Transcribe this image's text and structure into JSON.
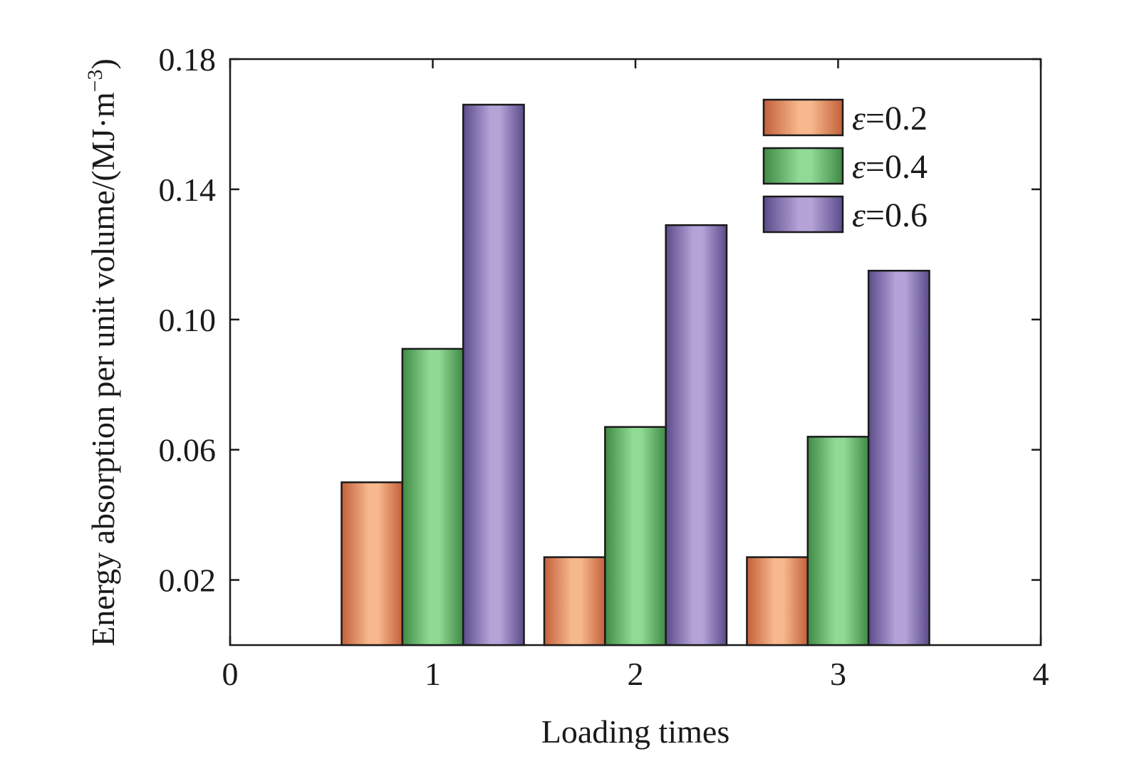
{
  "chart_data": {
    "type": "bar",
    "title": "",
    "xlabel": "Loading times",
    "ylabel_main": "Energy absorption per unit volume/(MJ·m",
    "ylabel_sup": "−3",
    "ylabel_close": ")",
    "x_ticks": [
      "0",
      "1",
      "2",
      "3",
      "4"
    ],
    "y_ticks": [
      "0.02",
      "0.06",
      "0.10",
      "0.14",
      "0.18"
    ],
    "y_tick_values": [
      0.02,
      0.06,
      0.1,
      0.14,
      0.18
    ],
    "xlim": [
      0,
      4
    ],
    "ylim": [
      0,
      0.18
    ],
    "grid": false,
    "legend_position": "top-right",
    "categories": [
      1,
      2,
      3
    ],
    "series": [
      {
        "symbol": "ε",
        "label_rest": "=0.2",
        "values": [
          0.05,
          0.027,
          0.027
        ],
        "colors": {
          "edge": "#c2603a",
          "center": "#f8b88d"
        }
      },
      {
        "symbol": "ε",
        "label_rest": "=0.4",
        "values": [
          0.091,
          0.067,
          0.064
        ],
        "colors": {
          "edge": "#3f8a45",
          "center": "#8fda95"
        }
      },
      {
        "symbol": "ε",
        "label_rest": "=0.6",
        "values": [
          0.166,
          0.129,
          0.115
        ],
        "colors": {
          "edge": "#5b4b8a",
          "center": "#b5a3d8"
        }
      }
    ]
  }
}
